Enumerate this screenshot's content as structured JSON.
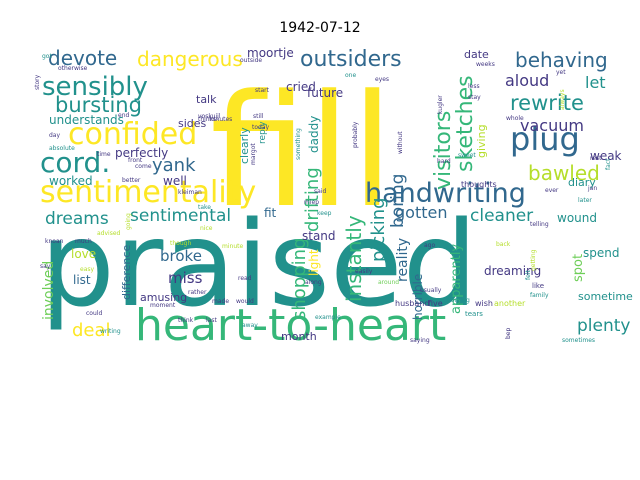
{
  "title": "1942-07-12",
  "palette": {
    "yellow": "#fde725",
    "lime": "#b5de2b",
    "green": "#6ece58",
    "teal_green": "#35b779",
    "teal": "#21918c",
    "steel": "#31688e",
    "indigo": "#443983",
    "purple": "#440154"
  },
  "words": [
    {
      "text": "praised",
      "color": "teal"
    },
    {
      "text": "fill",
      "color": "yellow"
    },
    {
      "text": "heart-to-heart",
      "color": "teal_green"
    },
    {
      "text": "sentimentality",
      "color": "yellow"
    },
    {
      "text": "handwriting",
      "color": "steel"
    },
    {
      "text": "confided",
      "color": "yellow"
    },
    {
      "text": "sensibly",
      "color": "teal"
    },
    {
      "text": "plug",
      "color": "steel"
    },
    {
      "text": "cord.",
      "color": "teal"
    },
    {
      "text": "outsiders",
      "color": "steel"
    },
    {
      "text": "behaving",
      "color": "steel"
    },
    {
      "text": "rewrite",
      "color": "teal"
    },
    {
      "text": "bursting",
      "color": "teal"
    },
    {
      "text": "devote",
      "color": "steel"
    },
    {
      "text": "dangerous",
      "color": "yellow"
    },
    {
      "text": "sketches",
      "color": "teal_green"
    },
    {
      "text": "visitors",
      "color": "teal_green"
    },
    {
      "text": "bawled",
      "color": "lime"
    },
    {
      "text": "instantly",
      "color": "teal_green"
    },
    {
      "text": "shopping",
      "color": "teal_green"
    },
    {
      "text": "drifting",
      "color": "teal_green"
    },
    {
      "text": "picking",
      "color": "teal"
    },
    {
      "text": "boring",
      "color": "steel"
    },
    {
      "text": "sentimental",
      "color": "teal"
    },
    {
      "text": "dreams",
      "color": "teal"
    },
    {
      "text": "cleaner",
      "color": "teal"
    },
    {
      "text": "gotten",
      "color": "steel"
    },
    {
      "text": "vacuum",
      "color": "indigo"
    },
    {
      "text": "aloud",
      "color": "indigo"
    },
    {
      "text": "let",
      "color": "teal"
    },
    {
      "text": "plenty",
      "color": "teal"
    },
    {
      "text": "yank",
      "color": "steel"
    },
    {
      "text": "deal",
      "color": "yellow"
    },
    {
      "text": "broke",
      "color": "steel"
    },
    {
      "text": "involved",
      "color": "green"
    },
    {
      "text": "miss",
      "color": "indigo"
    },
    {
      "text": "reality",
      "color": "steel"
    },
    {
      "text": "horrible",
      "color": "steel"
    },
    {
      "text": "apparently",
      "color": "teal_green"
    },
    {
      "text": "spot",
      "color": "green"
    },
    {
      "text": "dreaming",
      "color": "indigo"
    },
    {
      "text": "sometime",
      "color": "teal"
    },
    {
      "text": "wound",
      "color": "teal"
    },
    {
      "text": "spend",
      "color": "teal"
    },
    {
      "text": "weak",
      "color": "indigo"
    },
    {
      "text": "diary",
      "color": "teal"
    },
    {
      "text": "perfectly",
      "color": "indigo"
    },
    {
      "text": "understands",
      "color": "teal"
    },
    {
      "text": "worked",
      "color": "teal"
    },
    {
      "text": "well",
      "color": "indigo"
    },
    {
      "text": "love",
      "color": "lime"
    },
    {
      "text": "list",
      "color": "steel"
    },
    {
      "text": "amusing",
      "color": "indigo"
    },
    {
      "text": "difference",
      "color": "steel"
    },
    {
      "text": "month",
      "color": "indigo"
    },
    {
      "text": "stand",
      "color": "indigo"
    },
    {
      "text": "light",
      "color": "yellow"
    },
    {
      "text": "fit",
      "color": "steel"
    },
    {
      "text": "future",
      "color": "indigo"
    },
    {
      "text": "daddy",
      "color": "teal"
    },
    {
      "text": "cried",
      "color": "indigo"
    },
    {
      "text": "moortje",
      "color": "indigo"
    },
    {
      "text": "talk",
      "color": "indigo"
    },
    {
      "text": "sides",
      "color": "indigo"
    },
    {
      "text": "clearly",
      "color": "teal"
    },
    {
      "text": "date",
      "color": "indigo"
    },
    {
      "text": "giving",
      "color": "lime"
    },
    {
      "text": "thoughts",
      "color": "indigo"
    },
    {
      "text": "husband",
      "color": "indigo"
    },
    {
      "text": "reply",
      "color": "teal"
    },
    {
      "text": "wish",
      "color": "indigo"
    },
    {
      "text": "another",
      "color": "lime"
    },
    {
      "text": "five",
      "color": "indigo"
    },
    {
      "text": "tears",
      "color": "teal"
    },
    {
      "text": "made",
      "color": "indigo"
    },
    {
      "text": "would",
      "color": "indigo"
    },
    {
      "text": "kleiman",
      "color": "indigo"
    },
    {
      "text": "moment",
      "color": "indigo"
    },
    {
      "text": "rather",
      "color": "indigo"
    },
    {
      "text": "read",
      "color": "indigo"
    },
    {
      "text": "take",
      "color": "teal"
    },
    {
      "text": "nice",
      "color": "lime"
    },
    {
      "text": "minute",
      "color": "lime"
    },
    {
      "text": "easily",
      "color": "indigo"
    },
    {
      "text": "around",
      "color": "green"
    },
    {
      "text": "usually",
      "color": "indigo"
    },
    {
      "text": "family",
      "color": "teal"
    },
    {
      "text": "like",
      "color": "indigo"
    },
    {
      "text": "felt",
      "color": "teal"
    },
    {
      "text": "story",
      "color": "indigo"
    },
    {
      "text": "knoan",
      "color": "indigo"
    },
    {
      "text": "say",
      "color": "indigo"
    },
    {
      "text": "much",
      "color": "indigo"
    },
    {
      "text": "easy",
      "color": "lime"
    },
    {
      "text": "writing",
      "color": "teal"
    },
    {
      "text": "could",
      "color": "indigo"
    },
    {
      "text": "better",
      "color": "indigo"
    },
    {
      "text": "front",
      "color": "indigo"
    },
    {
      "text": "come",
      "color": "indigo"
    },
    {
      "text": "voskuijl",
      "color": "indigo"
    },
    {
      "text": "still",
      "color": "indigo"
    },
    {
      "text": "today",
      "color": "indigo"
    },
    {
      "text": "start",
      "color": "indigo"
    },
    {
      "text": "margot",
      "color": "indigo"
    },
    {
      "text": "probably",
      "color": "indigo"
    },
    {
      "text": "without",
      "color": "indigo"
    },
    {
      "text": "hard",
      "color": "indigo"
    },
    {
      "text": "working",
      "color": "teal"
    },
    {
      "text": "sweet",
      "color": "teal"
    },
    {
      "text": "rest",
      "color": "indigo"
    },
    {
      "text": "jan",
      "color": "indigo"
    },
    {
      "text": "later",
      "color": "teal"
    },
    {
      "text": "bep",
      "color": "indigo"
    },
    {
      "text": "ever",
      "color": "indigo"
    },
    {
      "text": "telling",
      "color": "indigo"
    },
    {
      "text": "sometimes",
      "color": "teal"
    },
    {
      "text": "saying",
      "color": "indigo"
    },
    {
      "text": "example",
      "color": "teal"
    },
    {
      "text": "away",
      "color": "teal"
    },
    {
      "text": "though",
      "color": "lime"
    },
    {
      "text": "keep",
      "color": "teal"
    },
    {
      "text": "said",
      "color": "indigo"
    },
    {
      "text": "miep",
      "color": "indigo"
    },
    {
      "text": "think",
      "color": "indigo"
    },
    {
      "text": "last",
      "color": "indigo"
    },
    {
      "text": "thinks",
      "color": "indigo"
    },
    {
      "text": "outside",
      "color": "indigo"
    },
    {
      "text": "something",
      "color": "teal"
    },
    {
      "text": "minutes",
      "color": "indigo"
    },
    {
      "text": "end",
      "color": "indigo"
    },
    {
      "text": "otherwise",
      "color": "indigo"
    },
    {
      "text": "got",
      "color": "teal"
    },
    {
      "text": "eyes",
      "color": "indigo"
    },
    {
      "text": "kugler",
      "color": "indigo"
    },
    {
      "text": "weeks",
      "color": "indigo"
    },
    {
      "text": "less",
      "color": "indigo"
    },
    {
      "text": "stay",
      "color": "indigo"
    },
    {
      "text": "whole",
      "color": "indigo"
    },
    {
      "text": "yet",
      "color": "indigo"
    },
    {
      "text": "always",
      "color": "lime"
    },
    {
      "text": "fact",
      "color": "teal"
    },
    {
      "text": "back",
      "color": "lime"
    },
    {
      "text": "getting",
      "color": "lime"
    },
    {
      "text": "advised",
      "color": "lime"
    },
    {
      "text": "ago",
      "color": "indigo"
    },
    {
      "text": "one",
      "color": "teal"
    },
    {
      "text": "along",
      "color": "indigo"
    },
    {
      "text": "going",
      "color": "lime"
    },
    {
      "text": "time",
      "color": "indigo"
    },
    {
      "text": "day",
      "color": "indigo"
    },
    {
      "text": "absolute",
      "color": "teal"
    }
  ]
}
